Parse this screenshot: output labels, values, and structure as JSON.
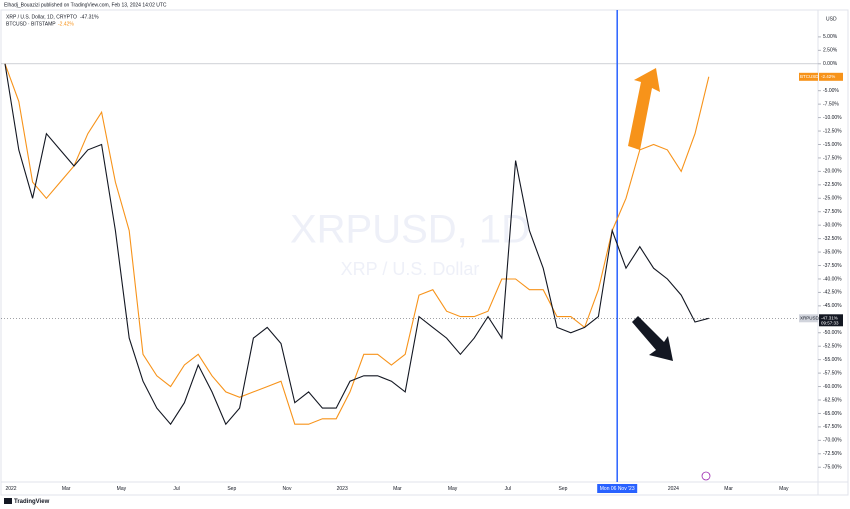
{
  "header": {
    "publisher": "Elhadj_Bouazizi published on TradingView.com, Feb 13, 2024 14:02 UTC"
  },
  "footer": {
    "brand": "TradingView"
  },
  "chart_data": {
    "type": "line",
    "watermark": "XRPUSD, 1D",
    "watermark_sub": "XRP / U.S. Dollar",
    "y_axis_unit": "USD",
    "annotation": "Mon 06 Nov '23",
    "price_time": "09:57:33",
    "x": [
      "2022",
      null,
      null,
      null,
      "Mar",
      null,
      null,
      null,
      "May",
      null,
      null,
      null,
      "Jul",
      null,
      null,
      null,
      "Sep",
      null,
      null,
      null,
      "Nov",
      null,
      null,
      null,
      "2023",
      null,
      null,
      null,
      "Mar",
      null,
      null,
      null,
      "May",
      null,
      null,
      null,
      "Jul",
      null,
      null,
      null,
      "Sep",
      null,
      null,
      null,
      null,
      null,
      null,
      null,
      "2024",
      null,
      null,
      null,
      "Mar",
      null,
      null,
      null,
      "May",
      null
    ],
    "series": [
      {
        "name": "XRP / U.S. Dollar, 1D, CRYPTO",
        "short_name": "XRPUSD",
        "color": "#131722",
        "legend_value": "-47.31%",
        "values": [
          0,
          -16,
          -25,
          -13,
          -16,
          -19,
          -16,
          -15,
          -31,
          -51,
          -59,
          -64,
          -67,
          -63,
          -56,
          -61,
          -67,
          -64,
          -51,
          -49,
          -52,
          -63,
          -61,
          -64,
          -64,
          -59,
          -58,
          -58,
          -59,
          -61,
          -47,
          -49,
          -51,
          -54,
          -51,
          -47,
          -51,
          -18,
          -31,
          -38,
          -49,
          -50,
          -49,
          -47,
          -31,
          -38,
          -34,
          -38,
          -40,
          -43,
          -48,
          -47.31,
          null,
          null,
          null,
          null,
          null,
          null
        ]
      },
      {
        "name": "BTCUSD · BITSTAMP",
        "short_name": "BTCUSD",
        "color": "#f7931a",
        "legend_value": "-2.42%",
        "values": [
          0,
          -7,
          -22,
          -25,
          -22,
          -19,
          -13,
          -9,
          -22,
          -31,
          -54,
          -58,
          -60,
          -56,
          -54,
          -58,
          -61,
          -62,
          -61,
          -60,
          -59,
          -67,
          -67,
          -66,
          -66,
          -61,
          -54,
          -54,
          -56,
          -54,
          -43,
          -42,
          -46,
          -47,
          -47,
          -46,
          -40,
          -40,
          -42,
          -42,
          -47,
          -47,
          -49,
          -42,
          -31,
          -25,
          -16,
          -15,
          -16,
          -20,
          -13,
          -2.42,
          null,
          null,
          null,
          null,
          null,
          null
        ]
      }
    ],
    "ylim": [
      -77,
      10
    ],
    "yticks": [
      {
        "value": 5,
        "label": "5.00%"
      },
      {
        "value": 2.5,
        "label": "2.50%"
      },
      {
        "value": 0,
        "label": "0.00%"
      },
      {
        "value": -5,
        "label": "-5.00%"
      },
      {
        "value": -7.5,
        "label": "-7.50%"
      },
      {
        "value": -10,
        "label": "-10.00%"
      },
      {
        "value": -12.5,
        "label": "-12.50%"
      },
      {
        "value": -15,
        "label": "-15.00%"
      },
      {
        "value": -17.5,
        "label": "-17.50%"
      },
      {
        "value": -20,
        "label": "-20.00%"
      },
      {
        "value": -22.5,
        "label": "-22.50%"
      },
      {
        "value": -25,
        "label": "-25.00%"
      },
      {
        "value": -27.5,
        "label": "-27.50%"
      },
      {
        "value": -30,
        "label": "-30.00%"
      },
      {
        "value": -32.5,
        "label": "-32.50%"
      },
      {
        "value": -35,
        "label": "-35.00%"
      },
      {
        "value": -37.5,
        "label": "-37.50%"
      },
      {
        "value": -40,
        "label": "-40.00%"
      },
      {
        "value": -42.5,
        "label": "-42.50%"
      },
      {
        "value": -45,
        "label": "-45.00%"
      },
      {
        "value": -47.5,
        "label": "-47.50%"
      },
      {
        "value": -50,
        "label": "-50.00%"
      },
      {
        "value": -52.5,
        "label": "-52.50%"
      },
      {
        "value": -55,
        "label": "-55.00%"
      },
      {
        "value": -57.5,
        "label": "-57.50%"
      },
      {
        "value": -60,
        "label": "-60.00%"
      },
      {
        "value": -62.5,
        "label": "-62.50%"
      },
      {
        "value": -65,
        "label": "-65.00%"
      },
      {
        "value": -67.5,
        "label": "-67.50%"
      },
      {
        "value": -70,
        "label": "-70.00%"
      },
      {
        "value": -72.5,
        "label": "-72.50%"
      },
      {
        "value": -75,
        "label": "-75.00%"
      }
    ],
    "zero_line": true,
    "annotation_index": 44
  }
}
